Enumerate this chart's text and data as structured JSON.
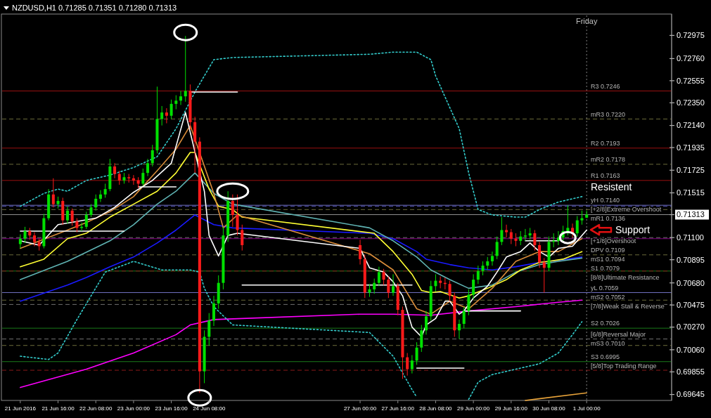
{
  "chart_data": {
    "type": "candlestick",
    "title": "NZDUSD,H1  0.71285 0.71351 0.71280 0.71313",
    "xlim": [
      "2016-06-20T16:00",
      "2016-07-02T12:00"
    ],
    "ylim": [
      0.6959,
      0.7316
    ],
    "xticks": [
      {
        "value": "2016-06-21T00:00",
        "label": "21 Jun 2016"
      },
      {
        "value": "2016-06-21T16:00",
        "label": "21 Jun 16:00"
      },
      {
        "value": "2016-06-22T08:00",
        "label": "22 Jun 08:00"
      },
      {
        "value": "2016-06-23T00:00",
        "label": "23 Jun 00:00"
      },
      {
        "value": "2016-06-23T16:00",
        "label": "23 Jun 16:00"
      },
      {
        "value": "2016-06-24T08:00",
        "label": "24 Jun 08:00"
      },
      {
        "value": "2016-06-27T00:00",
        "label": "27 Jun 00:00"
      },
      {
        "value": "2016-06-27T16:00",
        "label": "27 Jun 16:00"
      },
      {
        "value": "2016-06-28T08:00",
        "label": "28 Jun 08:00"
      },
      {
        "value": "2016-06-29T00:00",
        "label": "29 Jun 00:00"
      },
      {
        "value": "2016-06-29T16:00",
        "label": "29 Jun 16:00"
      },
      {
        "value": "2016-06-30T08:00",
        "label": "30 Jun 08:00"
      },
      {
        "value": "2016-07-01T00:00",
        "label": "1 Jul 00:00"
      }
    ],
    "yticks": [
      {
        "value": 0.72975,
        "label": "0.72975"
      },
      {
        "value": 0.7276,
        "label": "0.72760"
      },
      {
        "value": 0.72555,
        "label": "0.72555"
      },
      {
        "value": 0.7235,
        "label": "0.72350"
      },
      {
        "value": 0.7214,
        "label": "0.72140"
      },
      {
        "value": 0.71935,
        "label": "0.71935"
      },
      {
        "value": 0.71725,
        "label": "0.71725"
      },
      {
        "value": 0.71515,
        "label": "0.71515"
      },
      {
        "value": 0.71313,
        "label": "0.71313"
      },
      {
        "value": 0.711,
        "label": "0.71100"
      },
      {
        "value": 0.70895,
        "label": "0.70895"
      },
      {
        "value": 0.7068,
        "label": "0.70680"
      },
      {
        "value": 0.70475,
        "label": "0.70475"
      },
      {
        "value": 0.7027,
        "label": "0.70270"
      },
      {
        "value": 0.7006,
        "label": "0.70060"
      },
      {
        "value": 0.69855,
        "label": "0.69855"
      },
      {
        "value": 0.69645,
        "label": "0.69645"
      }
    ],
    "x": [
      "2016-06-21T00:00",
      "2016-06-21T02:00",
      "2016-06-21T04:00",
      "2016-06-21T06:00",
      "2016-06-21T08:00",
      "2016-06-21T10:00",
      "2016-06-21T12:00",
      "2016-06-21T14:00",
      "2016-06-21T16:00",
      "2016-06-21T18:00",
      "2016-06-21T20:00",
      "2016-06-21T22:00",
      "2016-06-22T00:00",
      "2016-06-22T02:00",
      "2016-06-22T04:00",
      "2016-06-22T06:00",
      "2016-06-22T08:00",
      "2016-06-22T10:00",
      "2016-06-22T12:00",
      "2016-06-22T14:00",
      "2016-06-22T16:00",
      "2016-06-22T18:00",
      "2016-06-22T20:00",
      "2016-06-22T22:00",
      "2016-06-23T00:00",
      "2016-06-23T02:00",
      "2016-06-23T04:00",
      "2016-06-23T06:00",
      "2016-06-23T08:00",
      "2016-06-23T10:00",
      "2016-06-23T12:00",
      "2016-06-23T14:00",
      "2016-06-23T16:00",
      "2016-06-23T18:00",
      "2016-06-23T20:00",
      "2016-06-23T22:00",
      "2016-06-24T00:00",
      "2016-06-24T02:00",
      "2016-06-24T04:00",
      "2016-06-24T06:00",
      "2016-06-24T08:00",
      "2016-06-24T10:00",
      "2016-06-24T12:00",
      "2016-06-24T14:00",
      "2016-06-24T16:00",
      "2016-06-24T18:00",
      "2016-06-24T20:00",
      "2016-06-24T22:00",
      "2016-06-27T00:00",
      "2016-06-27T02:00",
      "2016-06-27T04:00",
      "2016-06-27T06:00",
      "2016-06-27T08:00",
      "2016-06-27T10:00",
      "2016-06-27T12:00",
      "2016-06-27T14:00",
      "2016-06-27T16:00",
      "2016-06-27T18:00",
      "2016-06-27T20:00",
      "2016-06-27T22:00",
      "2016-06-28T00:00",
      "2016-06-28T02:00",
      "2016-06-28T04:00",
      "2016-06-28T06:00",
      "2016-06-28T08:00",
      "2016-06-28T10:00",
      "2016-06-28T12:00",
      "2016-06-28T14:00",
      "2016-06-28T16:00",
      "2016-06-28T18:00",
      "2016-06-28T20:00",
      "2016-06-28T22:00",
      "2016-06-29T00:00",
      "2016-06-29T02:00",
      "2016-06-29T04:00",
      "2016-06-29T06:00",
      "2016-06-29T08:00",
      "2016-06-29T10:00",
      "2016-06-29T12:00",
      "2016-06-29T14:00",
      "2016-06-29T16:00",
      "2016-06-29T18:00",
      "2016-06-29T20:00",
      "2016-06-29T22:00",
      "2016-06-30T00:00",
      "2016-06-30T02:00",
      "2016-06-30T04:00",
      "2016-06-30T06:00",
      "2016-06-30T08:00",
      "2016-06-30T10:00",
      "2016-06-30T12:00",
      "2016-06-30T14:00",
      "2016-06-30T16:00",
      "2016-06-30T18:00",
      "2016-06-30T20:00",
      "2016-06-30T22:00",
      "2016-07-01T00:00"
    ],
    "ohlc": [
      [
        0.7104,
        0.7113,
        0.71,
        0.7109
      ],
      [
        0.7109,
        0.712,
        0.7105,
        0.7116
      ],
      [
        0.7116,
        0.7119,
        0.7108,
        0.7112
      ],
      [
        0.7112,
        0.7115,
        0.7102,
        0.7106
      ],
      [
        0.7106,
        0.7109,
        0.7098,
        0.7102
      ],
      [
        0.7102,
        0.7132,
        0.71,
        0.7128
      ],
      [
        0.7128,
        0.7155,
        0.7126,
        0.715
      ],
      [
        0.715,
        0.7165,
        0.7138,
        0.7141
      ],
      [
        0.7141,
        0.7148,
        0.7137,
        0.7144
      ],
      [
        0.7144,
        0.7147,
        0.7122,
        0.7126
      ],
      [
        0.7126,
        0.7139,
        0.7123,
        0.7135
      ],
      [
        0.7135,
        0.7137,
        0.7121,
        0.7125
      ],
      [
        0.7125,
        0.7128,
        0.7115,
        0.7119
      ],
      [
        0.7119,
        0.7124,
        0.7116,
        0.712
      ],
      [
        0.712,
        0.7134,
        0.7118,
        0.7131
      ],
      [
        0.7131,
        0.7141,
        0.7129,
        0.7138
      ],
      [
        0.7138,
        0.715,
        0.7135,
        0.7146
      ],
      [
        0.7146,
        0.7154,
        0.7143,
        0.715
      ],
      [
        0.715,
        0.716,
        0.7147,
        0.7155
      ],
      [
        0.7155,
        0.7183,
        0.7153,
        0.7176
      ],
      [
        0.7176,
        0.7179,
        0.7165,
        0.7169
      ],
      [
        0.7169,
        0.7172,
        0.7159,
        0.7163
      ],
      [
        0.7163,
        0.717,
        0.716,
        0.7166
      ],
      [
        0.7166,
        0.7169,
        0.7161,
        0.7165
      ],
      [
        0.7165,
        0.7168,
        0.7159,
        0.7163
      ],
      [
        0.7163,
        0.7166,
        0.7156,
        0.716
      ],
      [
        0.716,
        0.7174,
        0.7158,
        0.717
      ],
      [
        0.717,
        0.7183,
        0.7167,
        0.7179
      ],
      [
        0.7179,
        0.7196,
        0.7176,
        0.7191
      ],
      [
        0.7191,
        0.725,
        0.7188,
        0.722
      ],
      [
        0.722,
        0.7232,
        0.7214,
        0.7226
      ],
      [
        0.7226,
        0.723,
        0.7216,
        0.7223
      ],
      [
        0.7223,
        0.7238,
        0.722,
        0.7234
      ],
      [
        0.7234,
        0.7242,
        0.7229,
        0.7237
      ],
      [
        0.7237,
        0.7246,
        0.7233,
        0.7241
      ],
      [
        0.7241,
        0.7297,
        0.7236,
        0.7246
      ],
      [
        0.7246,
        0.7252,
        0.721,
        0.7217
      ],
      [
        0.7217,
        0.7222,
        0.717,
        0.7199
      ],
      [
        0.7199,
        0.7203,
        0.6966,
        0.6986
      ],
      [
        0.6986,
        0.7024,
        0.6975,
        0.7018
      ],
      [
        0.7018,
        0.704,
        0.701,
        0.7033
      ],
      [
        0.7033,
        0.7056,
        0.7028,
        0.7049
      ],
      [
        0.7049,
        0.7075,
        0.7044,
        0.7068
      ],
      [
        0.7068,
        0.712,
        0.7062,
        0.7112
      ],
      [
        0.7112,
        0.7153,
        0.7106,
        0.7144
      ],
      [
        0.7144,
        0.715,
        0.712,
        0.7131
      ],
      [
        0.7131,
        0.715,
        0.7112,
        0.7117
      ],
      [
        0.7117,
        0.7122,
        0.7098,
        0.7103
      ],
      [
        0.7103,
        0.7108,
        0.7085,
        0.709
      ],
      [
        0.709,
        0.7094,
        0.7054,
        0.7059
      ],
      [
        0.7059,
        0.7067,
        0.7055,
        0.7062
      ],
      [
        0.7062,
        0.7072,
        0.7058,
        0.7068
      ],
      [
        0.7068,
        0.7083,
        0.7065,
        0.7078
      ],
      [
        0.7078,
        0.7081,
        0.7066,
        0.7071
      ],
      [
        0.7071,
        0.7074,
        0.7054,
        0.7059
      ],
      [
        0.7059,
        0.7076,
        0.7056,
        0.7065
      ],
      [
        0.7065,
        0.7068,
        0.7038,
        0.7043
      ],
      [
        0.7043,
        0.7046,
        0.6979,
        0.6999
      ],
      [
        0.6999,
        0.7003,
        0.6982,
        0.6988
      ],
      [
        0.6988,
        0.7001,
        0.6984,
        0.6996
      ],
      [
        0.6996,
        0.7013,
        0.6992,
        0.7008
      ],
      [
        0.7008,
        0.7029,
        0.7004,
        0.7024
      ],
      [
        0.7024,
        0.7042,
        0.702,
        0.7037
      ],
      [
        0.7037,
        0.707,
        0.7033,
        0.7065
      ],
      [
        0.7065,
        0.7076,
        0.706,
        0.707
      ],
      [
        0.707,
        0.7074,
        0.7063,
        0.7068
      ],
      [
        0.7068,
        0.7073,
        0.7062,
        0.7067
      ],
      [
        0.7067,
        0.707,
        0.7051,
        0.7056
      ],
      [
        0.7056,
        0.7059,
        0.7018,
        0.7024
      ],
      [
        0.7024,
        0.7034,
        0.7016,
        0.703
      ],
      [
        0.703,
        0.7046,
        0.7026,
        0.7042
      ],
      [
        0.7042,
        0.7062,
        0.7038,
        0.7057
      ],
      [
        0.7057,
        0.7076,
        0.7053,
        0.7071
      ],
      [
        0.7071,
        0.7084,
        0.7067,
        0.7079
      ],
      [
        0.7079,
        0.7088,
        0.7075,
        0.7084
      ],
      [
        0.7084,
        0.7092,
        0.708,
        0.7088
      ],
      [
        0.7088,
        0.7097,
        0.7084,
        0.7093
      ],
      [
        0.7093,
        0.7111,
        0.709,
        0.7106
      ],
      [
        0.7106,
        0.7129,
        0.7103,
        0.7117
      ],
      [
        0.7117,
        0.7122,
        0.711,
        0.7115
      ],
      [
        0.7115,
        0.7118,
        0.7104,
        0.7109
      ],
      [
        0.7109,
        0.7114,
        0.7102,
        0.7107
      ],
      [
        0.7107,
        0.7116,
        0.7103,
        0.7111
      ],
      [
        0.7111,
        0.7118,
        0.7107,
        0.7112
      ],
      [
        0.7112,
        0.7119,
        0.7108,
        0.7114
      ],
      [
        0.7114,
        0.7117,
        0.7098,
        0.7103
      ],
      [
        0.7103,
        0.7106,
        0.7082,
        0.7087
      ],
      [
        0.7087,
        0.7091,
        0.7059,
        0.7082
      ],
      [
        0.7082,
        0.7111,
        0.7079,
        0.7106
      ],
      [
        0.7106,
        0.7114,
        0.7101,
        0.7107
      ],
      [
        0.7107,
        0.7116,
        0.7103,
        0.711
      ],
      [
        0.711,
        0.7121,
        0.7106,
        0.7116
      ],
      [
        0.7116,
        0.714,
        0.7112,
        0.7119
      ],
      [
        0.7119,
        0.7123,
        0.711,
        0.7114
      ],
      [
        0.7114,
        0.713,
        0.7111,
        0.7126
      ],
      [
        0.7126,
        0.7135,
        0.7122,
        0.7128
      ],
      [
        0.71285,
        0.71351,
        0.7128,
        0.71313
      ]
    ],
    "series": [
      {
        "type": "line",
        "color": "#ff00ff",
        "x": [
          "2016-06-21T00:00",
          "2016-06-22T04:00",
          "2016-06-23T00:00",
          "2016-06-23T18:00",
          "2016-06-24T00:00",
          "2016-06-24T10:00",
          "2016-06-27T00:00",
          "2016-06-27T14:00",
          "2016-06-28T06:00",
          "2016-06-28T22:00",
          "2016-06-29T18:00",
          "2016-06-30T12:00",
          "2016-06-30T22:00"
        ],
        "values": [
          0.6971,
          0.6988,
          0.7003,
          0.702,
          0.7029,
          0.7034,
          0.7039,
          0.7039,
          0.7038,
          0.7042,
          0.7046,
          0.705,
          0.7052
        ]
      },
      {
        "type": "line",
        "color": "#1a1aff",
        "x": [
          "2016-06-21T00:00",
          "2016-06-21T20:00",
          "2016-06-22T04:00",
          "2016-06-22T14:00",
          "2016-06-23T00:00",
          "2016-06-23T10:00",
          "2016-06-23T18:00",
          "2016-06-24T02:00",
          "2016-06-24T10:00",
          "2016-06-24T18:00",
          "2016-06-27T04:00",
          "2016-06-27T14:00",
          "2016-06-28T00:00",
          "2016-06-28T04:00",
          "2016-06-28T14:00",
          "2016-06-28T22:00",
          "2016-06-29T08:00",
          "2016-06-29T18:00",
          "2016-06-30T04:00",
          "2016-06-30T12:00",
          "2016-06-30T22:00"
        ],
        "values": [
          0.7051,
          0.7066,
          0.7073,
          0.7083,
          0.7092,
          0.7105,
          0.7117,
          0.7131,
          0.7122,
          0.7119,
          0.7114,
          0.7109,
          0.7097,
          0.709,
          0.7085,
          0.7082,
          0.708,
          0.7083,
          0.7087,
          0.7089,
          0.7092
        ]
      },
      {
        "type": "line",
        "color": "#5fb3b3",
        "x": [
          "2016-06-21T00:00",
          "2016-06-21T20:00",
          "2016-06-22T14:00",
          "2016-06-23T00:00",
          "2016-06-23T10:00",
          "2016-06-23T18:00",
          "2016-06-24T02:00",
          "2016-06-24T10:00",
          "2016-06-24T18:00",
          "2016-06-27T04:00",
          "2016-06-27T14:00",
          "2016-06-28T00:00",
          "2016-06-28T06:00",
          "2016-06-28T14:00",
          "2016-06-28T22:00",
          "2016-06-29T08:00",
          "2016-06-29T18:00",
          "2016-06-30T04:00",
          "2016-06-30T12:00",
          "2016-06-30T22:00"
        ],
        "values": [
          0.7071,
          0.7088,
          0.7107,
          0.7122,
          0.7141,
          0.7153,
          0.717,
          0.7151,
          0.7141,
          0.7119,
          0.7107,
          0.7092,
          0.708,
          0.7071,
          0.7063,
          0.7066,
          0.7078,
          0.7085,
          0.7088,
          0.7091
        ]
      },
      {
        "type": "line",
        "color": "#ffff33",
        "x": [
          "2016-06-21T00:00",
          "2016-06-21T10:00",
          "2016-06-21T20:00",
          "2016-06-22T04:00",
          "2016-06-22T14:00",
          "2016-06-23T00:00",
          "2016-06-23T10:00",
          "2016-06-23T18:00",
          "2016-06-24T00:00",
          "2016-06-24T02:00",
          "2016-06-24T08:00",
          "2016-06-24T12:00",
          "2016-06-24T18:00",
          "2016-06-24T22:00",
          "2016-06-27T06:00",
          "2016-06-27T14:00",
          "2016-06-27T22:00",
          "2016-06-28T02:00",
          "2016-06-28T06:00",
          "2016-06-28T10:00",
          "2016-06-28T18:00",
          "2016-06-28T22:00",
          "2016-06-29T06:00",
          "2016-06-29T14:00",
          "2016-06-29T20:00",
          "2016-06-30T04:00",
          "2016-06-30T08:00",
          "2016-06-30T14:00",
          "2016-06-30T22:00"
        ],
        "values": [
          0.7083,
          0.709,
          0.7109,
          0.7114,
          0.7129,
          0.7141,
          0.7153,
          0.717,
          0.7189,
          0.7189,
          0.7155,
          0.7139,
          0.7136,
          0.7129,
          0.7114,
          0.7097,
          0.7076,
          0.7061,
          0.7059,
          0.706,
          0.7054,
          0.7056,
          0.7063,
          0.7071,
          0.708,
          0.7087,
          0.7088,
          0.709,
          0.7097
        ]
      },
      {
        "type": "line",
        "color": "#d98c3a",
        "x": [
          "2016-06-21T00:00",
          "2016-06-21T20:00",
          "2016-06-22T04:00",
          "2016-06-22T14:00",
          "2016-06-23T00:00",
          "2016-06-23T10:00",
          "2016-06-23T18:00",
          "2016-06-24T00:00",
          "2016-06-24T10:00",
          "2016-06-24T14:00",
          "2016-06-24T20:00",
          "2016-06-27T04:00",
          "2016-06-27T14:00",
          "2016-06-28T00:00",
          "2016-06-28T06:00",
          "2016-06-28T14:00",
          "2016-06-28T22:00",
          "2016-06-29T08:00",
          "2016-06-29T18:00",
          "2016-06-30T04:00",
          "2016-06-30T12:00",
          "2016-06-30T22:00"
        ],
        "values": [
          0.71,
          0.7117,
          0.7124,
          0.7134,
          0.7148,
          0.7172,
          0.7192,
          0.7214,
          0.7151,
          0.7119,
          0.7131,
          0.7095,
          0.708,
          0.7044,
          0.7039,
          0.7051,
          0.7044,
          0.7063,
          0.7088,
          0.7097,
          0.7097,
          0.7109
        ]
      },
      {
        "type": "line",
        "color": "#ffffff",
        "x": [
          "2016-06-21T00:00",
          "2016-06-21T08:00",
          "2016-06-21T16:00",
          "2016-06-22T00:00",
          "2016-06-22T08:00",
          "2016-06-22T16:00",
          "2016-06-23T00:00",
          "2016-06-23T08:00",
          "2016-06-23T16:00",
          "2016-06-23T22:00",
          "2016-06-24T06:00",
          "2016-06-24T08:00",
          "2016-06-24T12:00",
          "2016-06-24T16:00",
          "2016-06-24T20:00",
          "2016-06-27T00:00",
          "2016-06-27T04:00",
          "2016-06-27T10:00",
          "2016-06-27T14:00",
          "2016-06-27T18:00",
          "2016-06-27T22:00",
          "2016-06-28T02:00",
          "2016-06-28T04:00",
          "2016-06-28T08:00",
          "2016-06-28T12:00",
          "2016-06-28T14:00",
          "2016-06-28T18:00",
          "2016-06-28T20:00",
          "2016-06-29T00:00",
          "2016-06-29T06:00",
          "2016-06-29T10:00",
          "2016-06-29T14:00",
          "2016-06-29T20:00",
          "2016-06-30T00:00",
          "2016-06-30T04:00",
          "2016-06-30T08:00",
          "2016-06-30T12:00",
          "2016-06-30T18:00",
          "2016-07-01T00:00"
        ],
        "values": [
          0.7107,
          0.7103,
          0.7122,
          0.7125,
          0.7128,
          0.7138,
          0.7152,
          0.7163,
          0.7179,
          0.7226,
          0.7153,
          0.7112,
          0.7093,
          0.7112,
          0.7114,
          0.71,
          0.7082,
          0.7078,
          0.7069,
          0.7056,
          0.7027,
          0.7018,
          0.7029,
          0.7035,
          0.7051,
          0.7051,
          0.7039,
          0.7042,
          0.7054,
          0.7065,
          0.7078,
          0.7092,
          0.7097,
          0.7105,
          0.7097,
          0.7092,
          0.71,
          0.7102,
          0.7117
        ]
      },
      {
        "type": "line",
        "color": "#33cccc",
        "line_style": "dotted",
        "x": [
          "2016-06-21T00:00",
          "2016-06-21T10:00",
          "2016-06-21T16:00",
          "2016-06-21T20:00",
          "2016-06-22T04:00",
          "2016-06-22T14:00",
          "2016-06-23T00:00",
          "2016-06-23T10:00",
          "2016-06-23T18:00",
          "2016-06-24T02:00",
          "2016-06-24T10:00",
          "2016-06-24T18:00",
          "2016-06-27T04:00",
          "2016-06-27T14:00",
          "2016-06-28T00:00",
          "2016-06-28T06:00",
          "2016-06-28T08:00",
          "2016-06-28T18:00",
          "2016-06-28T22:00",
          "2016-06-29T02:00",
          "2016-06-29T08:00",
          "2016-06-29T18:00",
          "2016-06-29T22:00",
          "2016-06-30T04:00",
          "2016-06-30T12:00",
          "2016-06-30T22:00"
        ],
        "values": [
          0.7139,
          0.7151,
          0.7155,
          0.7153,
          0.7163,
          0.7168,
          0.7175,
          0.7185,
          0.7211,
          0.7245,
          0.7275,
          0.7277,
          0.728,
          0.7282,
          0.7282,
          0.7275,
          0.726,
          0.7211,
          0.717,
          0.7136,
          0.7131,
          0.7129,
          0.7129,
          0.7136,
          0.7143,
          0.7148
        ]
      },
      {
        "type": "line",
        "color": "#33cccc",
        "line_style": "dotted",
        "x": [
          "2016-06-21T00:00",
          "2016-06-21T12:00",
          "2016-06-21T16:00",
          "2016-06-22T00:00",
          "2016-06-22T12:00",
          "2016-06-23T00:00",
          "2016-06-23T06:00",
          "2016-06-23T12:00",
          "2016-06-23T18:00",
          "2016-06-24T00:00",
          "2016-06-24T04:00",
          "2016-06-24T06:00",
          "2016-06-24T10:00",
          "2016-06-24T18:00",
          "2016-06-27T04:00",
          "2016-06-27T14:00",
          "2016-06-27T22:00",
          "2016-06-28T00:00",
          "2016-06-28T12:00",
          "2016-06-28T22:00",
          "2016-06-29T02:00",
          "2016-06-29T08:00",
          "2016-06-29T18:00",
          "2016-06-30T04:00",
          "2016-06-30T12:00",
          "2016-06-30T18:00",
          "2016-06-30T22:00"
        ],
        "values": [
          0.7,
          0.6997,
          0.7003,
          0.7034,
          0.7078,
          0.7088,
          0.7084,
          0.708,
          0.708,
          0.708,
          0.7078,
          0.7063,
          0.7046,
          0.7029,
          0.7022,
          0.7,
          0.6969,
          0.6962,
          null,
          0.696,
          0.6976,
          0.6983,
          0.6988,
          0.6993,
          0.7003,
          0.702,
          0.7032
        ]
      },
      {
        "type": "line",
        "color": "#e8a33a",
        "x": [
          "2016-06-29T22:00",
          "2016-07-01T00:00"
        ],
        "values": [
          0.6959,
          0.6966
        ]
      },
      {
        "type": "line",
        "color": "#ffffff",
        "x": [
          "2016-06-21T00:00",
          "2016-06-22T20:00"
        ],
        "values": [
          0.7116,
          0.7116
        ]
      },
      {
        "type": "line",
        "color": "#ffffff",
        "x": [
          "2016-06-23T02:00",
          "2016-06-23T18:00"
        ],
        "values": [
          0.7157,
          0.7157
        ]
      },
      {
        "type": "line",
        "color": "#ffffff",
        "x": [
          "2016-06-24T00:00",
          "2016-06-24T20:00"
        ],
        "values": [
          0.7245,
          0.7245
        ]
      },
      {
        "type": "line",
        "color": "#ffffff",
        "x": [
          "2016-06-24T22:00",
          "2016-06-27T22:00"
        ],
        "values": [
          0.7066,
          0.7066
        ]
      },
      {
        "type": "line",
        "color": "#ffffff",
        "x": [
          "2016-06-28T00:00",
          "2016-06-28T20:00"
        ],
        "values": [
          0.6989,
          0.6989
        ]
      },
      {
        "type": "line",
        "color": "#ffffff",
        "x": [
          "2016-06-28T20:00",
          "2016-06-29T20:00"
        ],
        "values": [
          0.7042,
          0.7042
        ]
      },
      {
        "type": "line",
        "color": "#ffffff",
        "x": [
          "2016-06-29T22:00",
          "2016-06-30T12:00"
        ],
        "values": [
          0.7107,
          0.7107
        ]
      }
    ],
    "ref_lines": [
      {
        "axis": "x",
        "value": "2016-07-01T00:00",
        "label": "Friday",
        "color": "#808080",
        "line_style": "dotted"
      },
      {
        "axis": "y",
        "value": 0.71313,
        "color": "#909090",
        "line_style": "solid"
      },
      {
        "axis": "y",
        "value": 0.7246,
        "label": "R3 0.7246",
        "color": "#9b1010",
        "line_style": "solid"
      },
      {
        "axis": "y",
        "value": 0.722,
        "label": "mR3 0.7220",
        "color": "#6b6b3a",
        "line_style": "dashed"
      },
      {
        "axis": "y",
        "value": 0.7193,
        "label": "R2 0.7193",
        "color": "#9b1010",
        "line_style": "solid"
      },
      {
        "axis": "y",
        "value": 0.7178,
        "label": "mR2 0.7178",
        "color": "#6b6b3a",
        "line_style": "dashed"
      },
      {
        "axis": "y",
        "value": 0.7163,
        "label": "R1 0.7163",
        "color": "#9b1010",
        "line_style": "solid"
      },
      {
        "axis": "y",
        "value": 0.7136,
        "label": "mR1 0.7136",
        "color": "#6b6b3a",
        "line_style": "dashed"
      },
      {
        "axis": "y",
        "value": 0.7109,
        "label": "DPV 0.7109",
        "color": "#800080",
        "line_style": "solid"
      },
      {
        "axis": "y",
        "value": 0.7094,
        "label": "mS1 0.7094",
        "color": "#6b6b3a",
        "line_style": "dashed"
      },
      {
        "axis": "y",
        "value": 0.7079,
        "label": "S1 0.7079",
        "color": "#1a7a1a",
        "line_style": "solid"
      },
      {
        "axis": "y",
        "value": 0.7052,
        "label": "mS2 0.7052",
        "color": "#6b6b3a",
        "line_style": "dashed"
      },
      {
        "axis": "y",
        "value": 0.7026,
        "label": "S2 0.7026",
        "color": "#1a7a1a",
        "line_style": "solid"
      },
      {
        "axis": "y",
        "value": 0.701,
        "label": "mS3 0.7010",
        "color": "#6b6b3a",
        "line_style": "dashed"
      },
      {
        "axis": "y",
        "value": 0.6995,
        "label": "S3 0.6995",
        "color": "#1a7a1a",
        "line_style": "solid"
      },
      {
        "axis": "y",
        "value": 0.7139,
        "label": "[+2/8]Extreme Overshoot",
        "color": "#5050b0",
        "line_style": "dashed"
      },
      {
        "axis": "y",
        "value": 0.711,
        "label": "[+1/8]Overshoot",
        "color": "#707070",
        "line_style": "dashed"
      },
      {
        "axis": "y",
        "value": 0.7079,
        "label": "[8/8]Ultimate Resistance",
        "color": "#8b1a1a",
        "line_style": "dashed"
      },
      {
        "axis": "y",
        "value": 0.7048,
        "label": "[7/8]Weak Stall & Reverse",
        "color": "#707070",
        "line_style": "dashed"
      },
      {
        "axis": "y",
        "value": 0.7016,
        "label": "[6/8]Reversal Major",
        "color": "#707070",
        "line_style": "dashed"
      },
      {
        "axis": "y",
        "value": 0.6987,
        "label": "[5/8]Top Trading Range",
        "color": "#8b1a1a",
        "line_style": "dashed"
      },
      {
        "axis": "y",
        "value": 0.714,
        "label": "yH 0.7140",
        "color": "#7070c0",
        "line_style": "solid"
      },
      {
        "axis": "y",
        "value": 0.7059,
        "label": "yL 0.7059",
        "color": "#7070c0",
        "line_style": "solid"
      }
    ],
    "annotations": [
      "Resistent",
      "Support"
    ]
  }
}
